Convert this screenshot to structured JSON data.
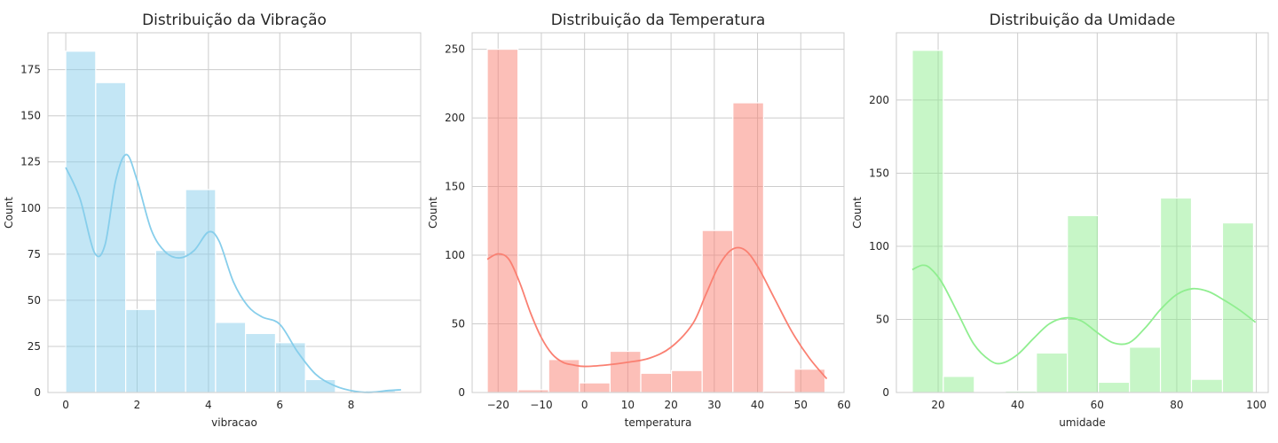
{
  "chart_data": [
    {
      "type": "bar",
      "title": "Distribuição da Vibração",
      "xlabel": "vibracao",
      "ylabel": "Count",
      "color": "#87ceeb",
      "xlim": [
        -0.5,
        9.95
      ],
      "ylim": [
        0,
        195
      ],
      "xticks": [
        0,
        2,
        4,
        6,
        8
      ],
      "yticks": [
        0,
        25,
        50,
        75,
        100,
        125,
        150,
        175
      ],
      "grid": true,
      "bins": [
        {
          "x0": 0.0,
          "x1": 0.84,
          "count": 185
        },
        {
          "x0": 0.84,
          "x1": 1.68,
          "count": 168
        },
        {
          "x0": 1.68,
          "x1": 2.52,
          "count": 45
        },
        {
          "x0": 2.52,
          "x1": 3.36,
          "count": 77
        },
        {
          "x0": 3.36,
          "x1": 4.2,
          "count": 110
        },
        {
          "x0": 4.2,
          "x1": 5.04,
          "count": 38
        },
        {
          "x0": 5.04,
          "x1": 5.88,
          "count": 32
        },
        {
          "x0": 5.88,
          "x1": 6.72,
          "count": 27
        },
        {
          "x0": 6.72,
          "x1": 7.56,
          "count": 7
        },
        {
          "x0": 7.56,
          "x1": 8.4,
          "count": 0
        },
        {
          "x0": 8.4,
          "x1": 9.24,
          "count": 1
        }
      ],
      "kde": {
        "x": [
          0.0,
          0.4,
          0.8,
          1.1,
          1.4,
          1.7,
          2.0,
          2.4,
          2.8,
          3.2,
          3.6,
          4.0,
          4.3,
          4.7,
          5.1,
          5.5,
          6.0,
          6.5,
          7.0,
          7.5,
          8.0,
          8.5,
          9.0,
          9.4
        ],
        "y": [
          122,
          105,
          76,
          80,
          115,
          129,
          115,
          88,
          76,
          73,
          77,
          87,
          82,
          60,
          47,
          41,
          37,
          22,
          10,
          4,
          1,
          0,
          1,
          1.5
        ]
      }
    },
    {
      "type": "bar",
      "title": "Distribuição da Temperatura",
      "xlabel": "temperatura",
      "ylabel": "Count",
      "color": "#fa8072",
      "xlim": [
        -26,
        60
      ],
      "ylim": [
        0,
        262
      ],
      "xticks": [
        -20,
        -10,
        0,
        10,
        20,
        30,
        40,
        50,
        60
      ],
      "yticks": [
        0,
        50,
        100,
        150,
        200,
        250
      ],
      "grid": true,
      "bins": [
        {
          "x0": -22.5,
          "x1": -15.4,
          "count": 250
        },
        {
          "x0": -15.4,
          "x1": -8.3,
          "count": 2
        },
        {
          "x0": -8.3,
          "x1": -1.2,
          "count": 24
        },
        {
          "x0": -1.2,
          "x1": 5.9,
          "count": 7
        },
        {
          "x0": 5.9,
          "x1": 13.0,
          "count": 30
        },
        {
          "x0": 13.0,
          "x1": 20.1,
          "count": 14
        },
        {
          "x0": 20.1,
          "x1": 27.2,
          "count": 16
        },
        {
          "x0": 27.2,
          "x1": 34.3,
          "count": 118
        },
        {
          "x0": 34.3,
          "x1": 41.4,
          "count": 211
        },
        {
          "x0": 41.4,
          "x1": 48.5,
          "count": 1
        },
        {
          "x0": 48.5,
          "x1": 55.6,
          "count": 17
        }
      ],
      "kde": {
        "x": [
          -22.5,
          -20.0,
          -17.5,
          -15.0,
          -12.5,
          -10.0,
          -7.5,
          -5.0,
          -2.5,
          0.0,
          5.0,
          10.0,
          15.0,
          20.0,
          25.0,
          28.0,
          31.0,
          34.0,
          37.0,
          40.0,
          44.0,
          48.0,
          52.0,
          56.0
        ],
        "y": [
          97,
          101,
          97,
          80,
          58,
          40,
          28,
          22,
          20,
          19,
          20,
          22,
          25,
          33,
          50,
          71,
          92,
          104,
          104,
          92,
          68,
          44,
          25,
          10
        ]
      }
    },
    {
      "type": "bar",
      "title": "Distribuição da Umidade",
      "xlabel": "umidade",
      "ylabel": "Count",
      "color": "#90ee90",
      "xlim": [
        9.5,
        103
      ],
      "ylim": [
        0,
        246
      ],
      "xticks": [
        20,
        40,
        60,
        80,
        100
      ],
      "yticks": [
        0,
        50,
        100,
        150,
        200
      ],
      "grid": true,
      "bins": [
        {
          "x0": 13.5,
          "x1": 21.3,
          "count": 234
        },
        {
          "x0": 21.3,
          "x1": 29.1,
          "count": 11
        },
        {
          "x0": 29.1,
          "x1": 36.9,
          "count": 0
        },
        {
          "x0": 36.9,
          "x1": 44.7,
          "count": 1
        },
        {
          "x0": 44.7,
          "x1": 52.5,
          "count": 27
        },
        {
          "x0": 52.5,
          "x1": 60.3,
          "count": 121
        },
        {
          "x0": 60.3,
          "x1": 68.1,
          "count": 7
        },
        {
          "x0": 68.1,
          "x1": 75.9,
          "count": 31
        },
        {
          "x0": 75.9,
          "x1": 83.7,
          "count": 133
        },
        {
          "x0": 83.7,
          "x1": 91.5,
          "count": 9
        },
        {
          "x0": 91.5,
          "x1": 99.3,
          "count": 116
        }
      ],
      "kde": {
        "x": [
          13.5,
          16.0,
          18.0,
          21.0,
          25.0,
          29.0,
          33.0,
          36.0,
          40.0,
          44.0,
          48.0,
          52.0,
          56.0,
          60.0,
          64.0,
          68.0,
          72.0,
          76.0,
          80.0,
          84.0,
          88.0,
          92.0,
          96.0,
          99.8
        ],
        "y": [
          84,
          87,
          85,
          75,
          54,
          33,
          22,
          20,
          26,
          37,
          47,
          51,
          49,
          41,
          34,
          34,
          44,
          57,
          67,
          71,
          69,
          63,
          56,
          48
        ]
      }
    }
  ]
}
